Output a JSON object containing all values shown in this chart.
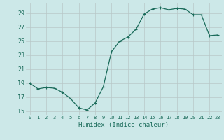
{
  "x": [
    0,
    1,
    2,
    3,
    4,
    5,
    6,
    7,
    8,
    9,
    10,
    11,
    12,
    13,
    14,
    15,
    16,
    17,
    18,
    19,
    20,
    21,
    22,
    23
  ],
  "y": [
    19,
    18.2,
    18.4,
    18.3,
    17.7,
    16.8,
    15.5,
    15.2,
    16.2,
    18.5,
    23.5,
    25.0,
    25.6,
    26.7,
    28.9,
    29.6,
    29.8,
    29.5,
    29.7,
    29.6,
    28.8,
    28.8,
    25.8,
    25.9
  ],
  "line_color": "#1a6b5a",
  "marker": "+",
  "marker_size": 3,
  "marker_linewidth": 0.8,
  "bg_color": "#cce8e8",
  "grid_color": "#b8c8c8",
  "xlabel": "Humidex (Indice chaleur)",
  "xlim": [
    -0.5,
    23.5
  ],
  "ylim": [
    14.5,
    30.5
  ],
  "yticks": [
    15,
    17,
    19,
    21,
    23,
    25,
    27,
    29
  ],
  "xticks": [
    0,
    1,
    2,
    3,
    4,
    5,
    6,
    7,
    8,
    9,
    10,
    11,
    12,
    13,
    14,
    15,
    16,
    17,
    18,
    19,
    20,
    21,
    22,
    23
  ],
  "label_color": "#1a6b5a",
  "tick_color": "#1a6b5a",
  "xlabel_fontsize": 6.5,
  "ytick_fontsize": 6,
  "xtick_fontsize": 5,
  "line_width": 0.9
}
